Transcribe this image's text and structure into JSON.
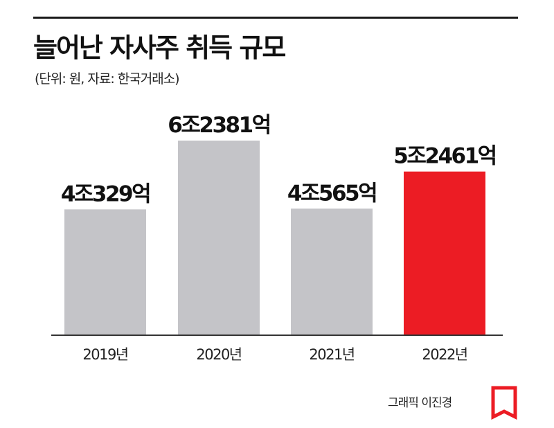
{
  "header": {
    "title": "늘어난 자사주 취득 규모",
    "subtitle": "(단위: 원, 자료: 한국거래소)"
  },
  "footer": {
    "credit": "그래픽 이진경",
    "logo_icon": "publisher-logo-icon"
  },
  "colors": {
    "default_bar": "#c4c4c8",
    "highlight_bar": "#ec1c24",
    "axis": "#333333"
  },
  "chart_data": {
    "type": "bar",
    "categories": [
      "2019년",
      "2020년",
      "2021년",
      "2022년"
    ],
    "values": [
      40329,
      62381,
      40565,
      52461
    ],
    "value_labels": [
      "4조329억",
      "6조2381억",
      "4조565억",
      "5조2461억"
    ],
    "unit": "억 원",
    "highlight_index": 3,
    "ylim": [
      0,
      70000
    ],
    "grid": false,
    "legend": false
  }
}
